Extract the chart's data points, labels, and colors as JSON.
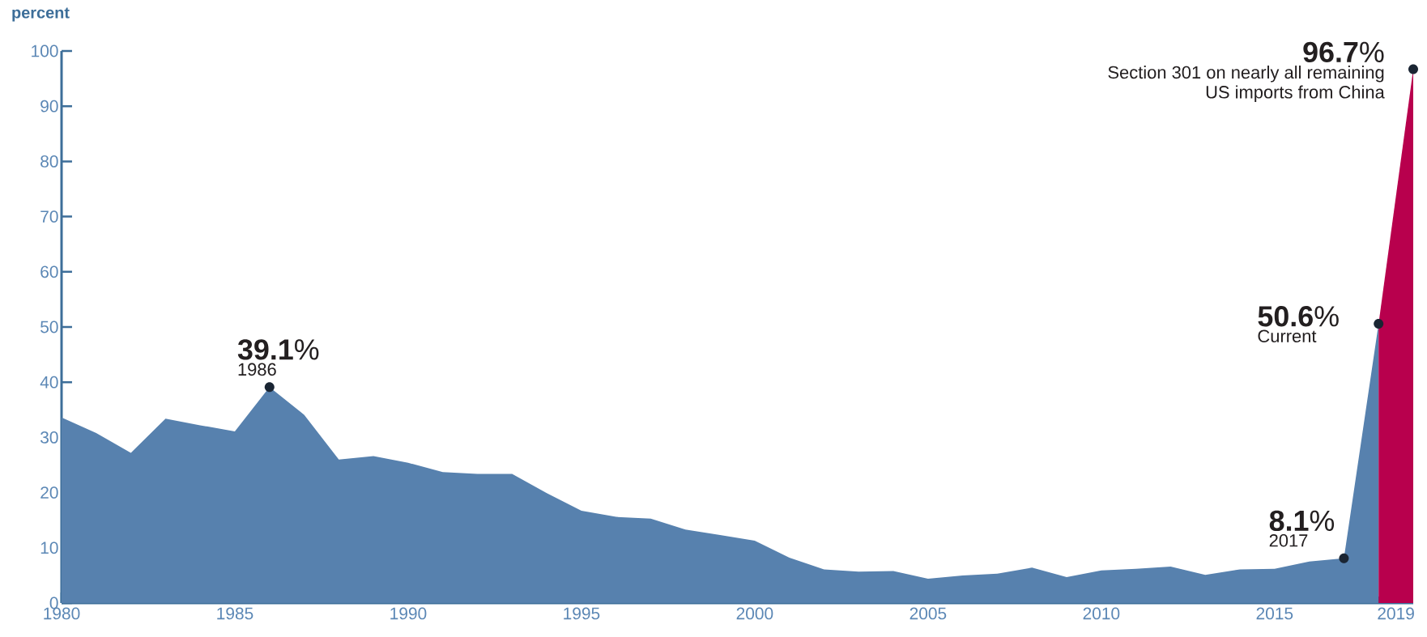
{
  "chart_data": {
    "type": "area",
    "ylabel": "percent",
    "xlim": [
      1980,
      2019
    ],
    "ylim": [
      0,
      100
    ],
    "yticks": [
      0,
      10,
      20,
      30,
      40,
      50,
      60,
      70,
      80,
      90,
      100
    ],
    "xticks": [
      1980,
      {
        "value": 1981,
        "label": null
      },
      {
        "value": 1982,
        "label": null
      },
      {
        "value": 1983,
        "label": null
      },
      {
        "value": 1984,
        "label": null
      },
      1985,
      {
        "value": 1986,
        "label": null
      },
      {
        "value": 1987,
        "label": null
      },
      {
        "value": 1988,
        "label": null
      },
      {
        "value": 1989,
        "label": null
      },
      1990,
      {
        "value": 1991,
        "label": null
      },
      {
        "value": 1992,
        "label": null
      },
      {
        "value": 1993,
        "label": null
      },
      {
        "value": 1994,
        "label": null
      },
      1995,
      {
        "value": 1996,
        "label": null
      },
      {
        "value": 1997,
        "label": null
      },
      {
        "value": 1998,
        "label": null
      },
      {
        "value": 1999,
        "label": null
      },
      2000,
      {
        "value": 2001,
        "label": null
      },
      {
        "value": 2002,
        "label": null
      },
      {
        "value": 2003,
        "label": null
      },
      {
        "value": 2004,
        "label": null
      },
      2005,
      {
        "value": 2006,
        "label": null
      },
      {
        "value": 2007,
        "label": null
      },
      {
        "value": 2008,
        "label": null
      },
      {
        "value": 2009,
        "label": null
      },
      2010,
      {
        "value": 2011,
        "label": null
      },
      {
        "value": 2012,
        "label": null
      },
      {
        "value": 2013,
        "label": null
      },
      {
        "value": 2014,
        "label": null
      },
      2015,
      {
        "value": 2016,
        "label": null
      },
      {
        "value": 2017,
        "label": null
      },
      {
        "value": 2018,
        "label": null
      },
      {
        "value": 2018.5,
        "label": "2019"
      }
    ],
    "series": [
      {
        "color": "#5781ae",
        "x": [
          1980,
          1981,
          1982,
          1983,
          1984,
          1985,
          1986,
          1987,
          1988,
          1989,
          1990,
          1991,
          1992,
          1993,
          1994,
          1995,
          1996,
          1997,
          1998,
          1999,
          2000,
          2001,
          2002,
          2003,
          2004,
          2005,
          2006,
          2007,
          2008,
          2009,
          2010,
          2011,
          2012,
          2013,
          2014,
          2015,
          2016,
          2017,
          2018
        ],
        "values": [
          33.6,
          30.8,
          27.2,
          33.4,
          32.2,
          31.1,
          39.1,
          34.1,
          26.0,
          26.6,
          25.4,
          23.7,
          23.4,
          23.4,
          19.9,
          16.7,
          15.6,
          15.3,
          13.3,
          12.3,
          11.3,
          8.2,
          6.1,
          5.7,
          5.8,
          4.4,
          5.0,
          5.3,
          6.4,
          4.7,
          5.9,
          6.2,
          6.6,
          5.1,
          6.1,
          6.2,
          7.5,
          8.1,
          50.6
        ]
      },
      {
        "color": "#b8004d",
        "x": [
          2018,
          2019
        ],
        "values": [
          50.6,
          96.7
        ]
      }
    ],
    "annotations": [
      {
        "text": "**39.1**%",
        "x": 1986,
        "y": 39.1
      },
      "1986",
      {
        "text": "**8.1**%",
        "x": 2017,
        "y": 8.1
      },
      "2017",
      {
        "text": "**50.6**%",
        "x": 2018,
        "y": 50.6
      },
      "Current",
      {
        "text": "**96.7**%",
        "x": 2019,
        "y": 96.7
      },
      "Section 301 on nearly all remaining",
      "US imports from China"
    ]
  }
}
